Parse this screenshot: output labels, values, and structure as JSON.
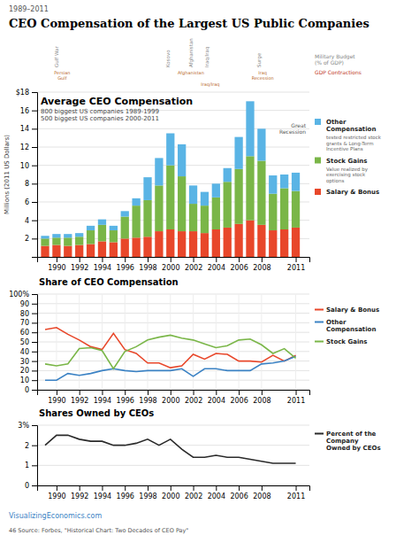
{
  "title": "CEO Compensation of the Largest US Public Companies",
  "subtitle": "1989–2011",
  "annotations": [
    "VisualizingEconomics.com",
    "46  Source: Forbes, \"Historical Chart: Two Decades of CEO Pay\""
  ],
  "chart_data": [
    {
      "type": "bar",
      "stacked": true,
      "title": "Average CEO Compensation",
      "subtitle": [
        "800 biggest US companies 1989-1999",
        "500 biggest US companies 2000-2011"
      ],
      "ylabel": "Millions (2011 US Dollars)",
      "x": [
        1989,
        1990,
        1991,
        1992,
        1993,
        1994,
        1995,
        1996,
        1997,
        1998,
        1999,
        2000,
        2001,
        2002,
        2003,
        2004,
        2005,
        2006,
        2007,
        2008,
        2009,
        2010,
        2011
      ],
      "xlim": [
        1988.3,
        2012.2
      ],
      "xticks": [
        1990,
        1992,
        1994,
        1996,
        1998,
        2000,
        2002,
        2004,
        2006,
        2008,
        2011
      ],
      "ylim": [
        0,
        18
      ],
      "yticks": [
        2,
        4,
        6,
        8,
        10,
        12,
        14,
        16,
        {
          "value": 18,
          "label": "$18"
        }
      ],
      "grid": "y",
      "legend": "right",
      "series": [
        {
          "name": "Salary & Bonus",
          "color": "#e8472a",
          "values": [
            1.2,
            1.3,
            1.2,
            1.3,
            1.4,
            1.7,
            1.6,
            2.0,
            2.1,
            2.2,
            2.8,
            3.0,
            2.8,
            2.8,
            2.6,
            3.0,
            3.2,
            3.6,
            4.0,
            3.5,
            2.9,
            3.0,
            3.2
          ]
        },
        {
          "name": "Stock Gains",
          "color": "#7ab648",
          "description": "Value realized by\nexercising stock\noptions",
          "values": [
            0.8,
            0.8,
            0.9,
            0.9,
            1.5,
            1.8,
            1.3,
            2.4,
            3.5,
            4.0,
            5.0,
            7.0,
            6.0,
            3.0,
            3.0,
            3.5,
            5.0,
            6.0,
            7.0,
            7.0,
            4.0,
            4.5,
            4.0
          ]
        },
        {
          "name": "Other\nCompensation",
          "color": "#5ab4e5",
          "description": "tested restricted stock\ngrants & Long-Term\nIncentive Plans",
          "values": [
            0.3,
            0.4,
            0.4,
            0.4,
            0.5,
            0.6,
            0.5,
            0.6,
            0.8,
            2.5,
            3.0,
            3.5,
            3.5,
            2.0,
            1.5,
            1.5,
            1.5,
            3.5,
            6.0,
            3.5,
            2.0,
            1.5,
            2.0
          ]
        }
      ],
      "war_labels": [
        {
          "text": "Gulf War",
          "x": 1990.0
        },
        {
          "text": "Kosovo",
          "x": 1999.8
        },
        {
          "text": "Afghanistan",
          "x": 2001.8
        },
        {
          "text": "Iraq/Iraq",
          "x": 2003.2
        },
        {
          "text": "Surge",
          "x": 2007.8
        }
      ],
      "sub_labels": [
        {
          "text": "Persian\nGulf",
          "x": 1990.5
        },
        {
          "text": "Afghanistan",
          "x": 2001.8
        },
        {
          "text": "Iraq/Iraq",
          "x": 2003.5
        },
        {
          "text": "Iraq\nRecession",
          "x": 2008.1
        }
      ],
      "annotations": [
        "Military Budget\n(% of GDP)",
        "GDP Contractions",
        "Great\nRecession"
      ]
    },
    {
      "type": "line",
      "title": "Share of CEO Compensation",
      "x": [
        1989,
        1990,
        1991,
        1992,
        1993,
        1994,
        1995,
        1996,
        1997,
        1998,
        1999,
        2000,
        2001,
        2002,
        2003,
        2004,
        2005,
        2006,
        2007,
        2008,
        2009,
        2010,
        2011
      ],
      "xlim": [
        1988.3,
        2012.2
      ],
      "xticks": [
        1990,
        1992,
        1994,
        1996,
        1998,
        2000,
        2002,
        2004,
        2006,
        2008,
        2011
      ],
      "ylim": [
        0,
        100
      ],
      "yticks": [
        0,
        10,
        20,
        30,
        40,
        50,
        60,
        70,
        80,
        90,
        {
          "value": 100,
          "label": "100%"
        }
      ],
      "grid": true,
      "legend": "right",
      "series": [
        {
          "name": "Salary & Bonus",
          "color": "#e8472a",
          "values": [
            63,
            65,
            58,
            52,
            45,
            42,
            59,
            42,
            38,
            28,
            28,
            23,
            25,
            37,
            32,
            38,
            37,
            30,
            30,
            29,
            36,
            30,
            36
          ]
        },
        {
          "name": "Other\nCompensation",
          "color": "#3b82c4",
          "values": [
            10,
            10,
            17,
            15,
            17,
            20,
            22,
            20,
            19,
            20,
            20,
            20,
            22,
            14,
            22,
            22,
            20,
            20,
            20,
            27,
            28,
            30,
            35
          ]
        },
        {
          "name": "Stock Gains",
          "color": "#7ab648",
          "values": [
            27,
            25,
            27,
            43,
            44,
            41,
            22,
            40,
            45,
            52,
            55,
            57,
            54,
            52,
            48,
            44,
            46,
            52,
            53,
            47,
            38,
            43,
            33
          ]
        }
      ]
    },
    {
      "type": "line",
      "title": "Shares Owned by CEOs",
      "x": [
        1989,
        1990,
        1991,
        1992,
        1993,
        1994,
        1995,
        1996,
        1997,
        1998,
        1999,
        2000,
        2001,
        2002,
        2003,
        2004,
        2005,
        2006,
        2007,
        2008,
        2009,
        2010,
        2011
      ],
      "xlim": [
        1988.3,
        2012.2
      ],
      "xticks": [
        1990,
        1992,
        1994,
        1996,
        1998,
        2000,
        2002,
        2004,
        2006,
        2008,
        2011
      ],
      "ylim": [
        0,
        3.0
      ],
      "yticks": [
        0,
        1,
        2,
        {
          "value": 3,
          "label": "3%"
        }
      ],
      "grid": "y",
      "legend": "right",
      "series": [
        {
          "name": "Percent of the\nCompany\nOwned by CEOs",
          "color": "#2a2a2a",
          "values": [
            2.0,
            2.5,
            2.5,
            2.3,
            2.2,
            2.2,
            2.0,
            2.0,
            2.1,
            2.3,
            2.0,
            2.3,
            1.8,
            1.4,
            1.4,
            1.5,
            1.4,
            1.4,
            1.3,
            1.2,
            1.1,
            1.1,
            1.1
          ]
        }
      ]
    }
  ]
}
